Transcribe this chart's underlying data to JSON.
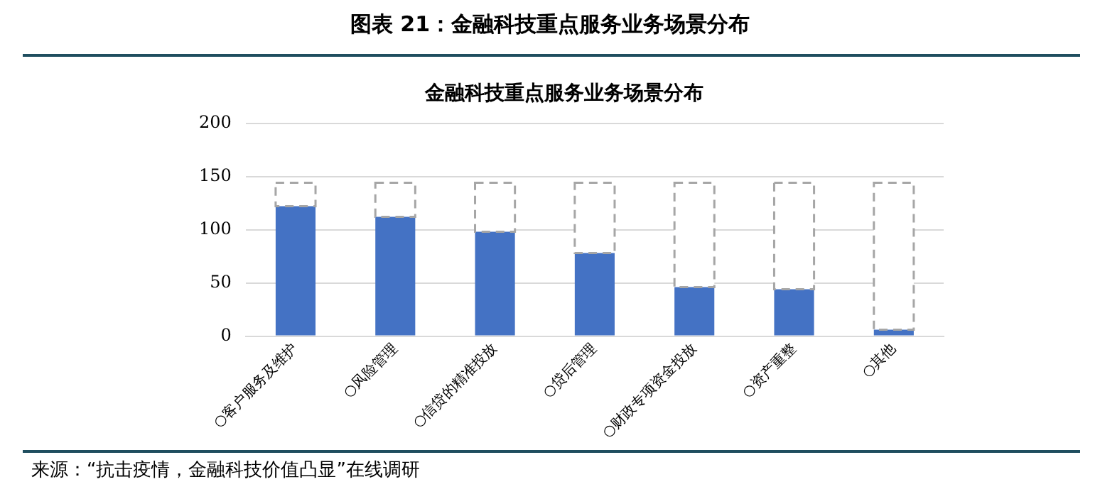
{
  "chart_data": {
    "type": "bar",
    "title": "金融科技重点服务业务场景分布",
    "subtitle": "图表 21：金融科技重点服务业务场景分布",
    "categories": [
      "○客户服务及维护",
      "○风险管理",
      "○信贷的精准投放",
      "○贷后管理",
      "○财政专项资金投放",
      "○资产重整",
      "○其他"
    ],
    "series": [
      {
        "color": "#4472c4",
        "values": [
          122,
          112,
          98,
          78,
          46,
          44,
          6
        ]
      },
      {
        "color": "#a6a6a6",
        "line_style": "dashed",
        "values": [
          22,
          32,
          46,
          66,
          98,
          100,
          138
        ]
      }
    ],
    "stacked": true,
    "ylim": [
      0,
      200
    ],
    "yticks": [
      0,
      50,
      100,
      150,
      200
    ],
    "grid": "y",
    "annotations": [
      "来源：“抗击疫情，金融科技价值凸显”在线调研"
    ]
  }
}
